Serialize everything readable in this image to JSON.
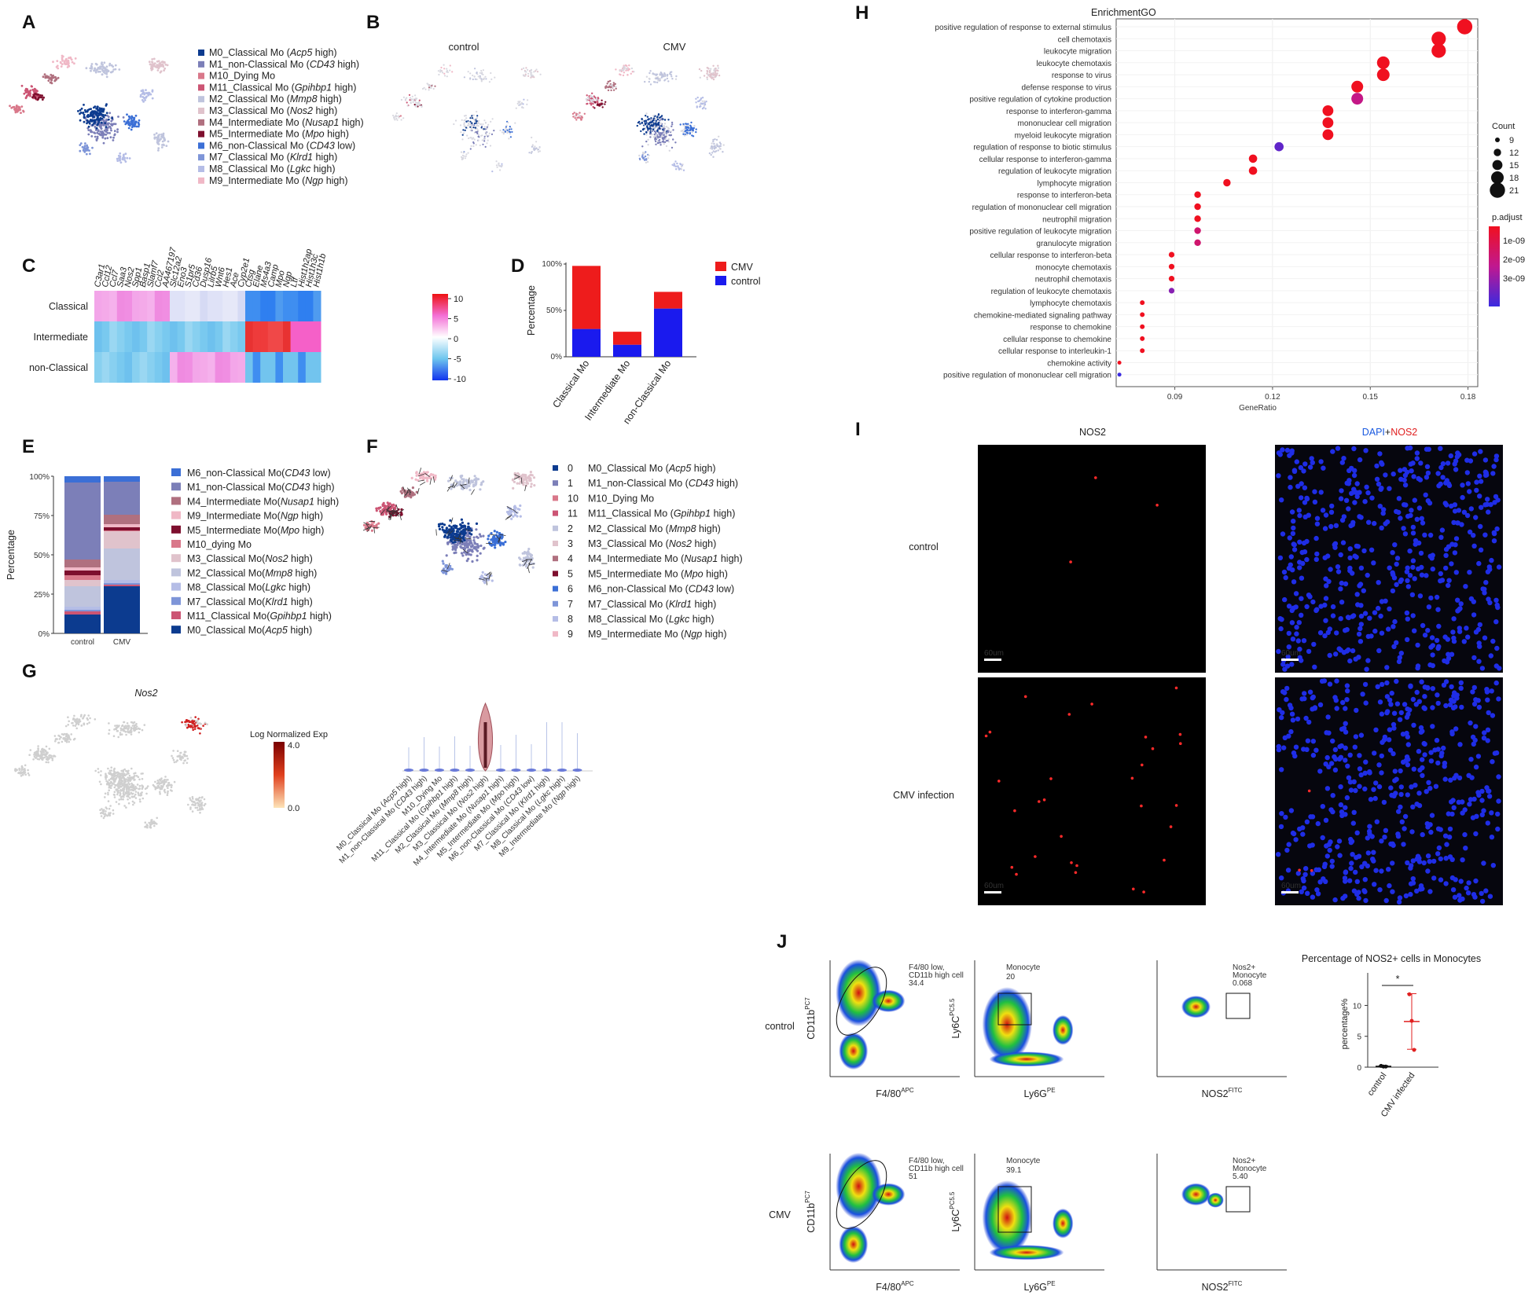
{
  "panels": {
    "A": "A",
    "B": "B",
    "C": "C",
    "D": "D",
    "E": "E",
    "F": "F",
    "G": "G",
    "H": "H",
    "I": "I",
    "J": "J"
  },
  "colors": {
    "M0": "#0c3b8f",
    "M1": "#7c7fb8",
    "M10": "#d9788a",
    "M11": "#cc5574",
    "M2": "#bfc4dd",
    "M3": "#e0c3cc",
    "M4": "#b0707f",
    "M5": "#7e0f2e",
    "M6": "#3b6fd6",
    "M7": "#7e95d8",
    "M8": "#b5bde6",
    "M9": "#f0b8c6",
    "cmv": "#ee1c1c",
    "control": "#1a1aee"
  },
  "panelA": {
    "legend": [
      {
        "key": "M0",
        "pre": "M0_Classical Mo (",
        "it": "Acp5",
        "post": " high)"
      },
      {
        "key": "M1",
        "pre": "M1_non-Classical Mo (",
        "it": "CD43",
        "post": " high)"
      },
      {
        "key": "M10",
        "pre": "M10_Dying Mo",
        "it": "",
        "post": ""
      },
      {
        "key": "M11",
        "pre": "M11_Classical Mo (",
        "it": "Gpihbp1",
        "post": " high)"
      },
      {
        "key": "M2",
        "pre": "M2_Classical Mo (",
        "it": "Mmp8",
        "post": " high)"
      },
      {
        "key": "M3",
        "pre": "M3_Classical Mo (",
        "it": "Nos2",
        "post": " high)"
      },
      {
        "key": "M4",
        "pre": "M4_Intermediate Mo (",
        "it": "Nusap1",
        "post": " high)"
      },
      {
        "key": "M5",
        "pre": "M5_Intermediate Mo (",
        "it": "Mpo",
        "post": " high)"
      },
      {
        "key": "M6",
        "pre": "M6_non-Classical Mo (",
        "it": "CD43",
        "post": " low)"
      },
      {
        "key": "M7",
        "pre": "M7_Classical Mo (",
        "it": "Klrd1",
        "post": " high)"
      },
      {
        "key": "M8",
        "pre": "M8_Classical Mo (",
        "it": "Lgkc",
        "post": " high)"
      },
      {
        "key": "M9",
        "pre": "M9_Intermediate Mo (",
        "it": "Ngp",
        "post": " high)"
      }
    ]
  },
  "panelB": {
    "left_title": "control",
    "right_title": "CMV"
  },
  "panelC": {
    "genes": [
      "C3ar1",
      "Ccl12",
      "Ccl7",
      "Saa3",
      "Nos2",
      "Spp1",
      "Basp1",
      "Slamf7",
      "Ccl2",
      "AA467197",
      "Slc12a2",
      "Eno3",
      "S1pr5",
      "Cd36",
      "Dusp16",
      "Lilrb5",
      "Wnt6",
      "Hes1",
      "Ace",
      "Cyp2e1",
      "Ctsg",
      "Elane",
      "Ms4a3",
      "Camp",
      "Mpo",
      "Ngp",
      "Ltf",
      "Hist1h2ap",
      "Hist1h3c",
      "Hist1h1b"
    ],
    "rows": [
      "Classical",
      "Intermediate",
      "non-Classical"
    ],
    "colorbar_ticks": [
      "10",
      "5",
      "0",
      "-5",
      "-10"
    ]
  },
  "chart_data": [
    {
      "type": "bar",
      "panel": "D",
      "categories": [
        "Classical Mo",
        "Intermediate Mo",
        "non-Classical Mo"
      ],
      "series": [
        {
          "name": "control",
          "values": [
            30,
            13,
            52
          ]
        },
        {
          "name": "CMV",
          "values": [
            68,
            14,
            18
          ]
        }
      ],
      "ylabel": "Percentage",
      "yticks": [
        "0%",
        "50%",
        "100%"
      ],
      "ylim": [
        0,
        100
      ],
      "stacked": true,
      "legend": "top-right"
    },
    {
      "type": "bar",
      "panel": "E",
      "categories": [
        "control",
        "CMV"
      ],
      "ylabel": "Percentage",
      "yticks": [
        "0%",
        "25%",
        "50%",
        "75%",
        "100%"
      ],
      "ylim": [
        0,
        100
      ],
      "stacked": true,
      "series": [
        {
          "key": "M0",
          "pre": "M0_Classical Mo(",
          "it": "Acp5",
          "post": " high)",
          "values": [
            12,
            30
          ]
        },
        {
          "key": "M11",
          "pre": "M11_Classical Mo(",
          "it": "Gpihbp1",
          "post": " high)",
          "values": [
            2,
            1
          ]
        },
        {
          "key": "M7",
          "pre": "M7_Classical Mo(",
          "it": "Klrd1",
          "post": " high)",
          "values": [
            1,
            1
          ]
        },
        {
          "key": "M8",
          "pre": "M8_Classical Mo(",
          "it": "Lgkc",
          "post": " high)",
          "values": [
            2,
            2
          ]
        },
        {
          "key": "M2",
          "pre": "M2_Classical Mo(",
          "it": "Mmp8",
          "post": " high)",
          "values": [
            13,
            20
          ]
        },
        {
          "key": "M3",
          "pre": "M3_Classical Mo(",
          "it": "Nos2",
          "post": " high)",
          "values": [
            4,
            11
          ]
        },
        {
          "key": "M10",
          "pre": "M10_dying Mo",
          "it": "",
          "post": "",
          "values": [
            3,
            0.5
          ]
        },
        {
          "key": "M5",
          "pre": "M5_Intermediate Mo(",
          "it": "Mpo",
          "post": " high)",
          "values": [
            3,
            2
          ]
        },
        {
          "key": "M9",
          "pre": "M9_Intermediate Mo(",
          "it": "Ngp",
          "post": " high)",
          "values": [
            2,
            2
          ]
        },
        {
          "key": "M4",
          "pre": "M4_Intermediate Mo(",
          "it": "Nusap1",
          "post": " high)",
          "values": [
            5,
            6
          ]
        },
        {
          "key": "M1",
          "pre": "M1_non-Classical Mo(",
          "it": "CD43",
          "post": " high)",
          "values": [
            49,
            21
          ]
        },
        {
          "key": "M6",
          "pre": "M6_non-Classical Mo(",
          "it": "CD43",
          "post": " low)",
          "values": [
            4,
            3.5
          ]
        }
      ]
    },
    {
      "type": "scatter",
      "panel": "H",
      "title": "EnrichmentGO",
      "xlabel": "GeneRatio",
      "xticks": [
        0.09,
        0.12,
        0.15,
        0.18
      ],
      "xlim": [
        0.072,
        0.183
      ],
      "size_legend": {
        "title": "Count",
        "values": [
          9,
          12,
          15,
          18,
          21
        ]
      },
      "color_legend": {
        "title": "p.adjust",
        "labels": [
          "1e-09",
          "2e-09",
          "3e-09"
        ]
      },
      "terms": [
        {
          "term": "positive regulation of response to external stimulus",
          "x": 0.179,
          "count": 21,
          "padj": 0.0
        },
        {
          "term": "cell chemotaxis",
          "x": 0.171,
          "count": 20,
          "padj": 0.0
        },
        {
          "term": "leukocyte migration",
          "x": 0.171,
          "count": 20,
          "padj": 0.0
        },
        {
          "term": "leukocyte chemotaxis",
          "x": 0.154,
          "count": 18,
          "padj": 0.0
        },
        {
          "term": "response to virus",
          "x": 0.154,
          "count": 18,
          "padj": 0.0
        },
        {
          "term": "defense response to virus",
          "x": 0.146,
          "count": 17,
          "padj": 0.0
        },
        {
          "term": "positive regulation of cytokine production",
          "x": 0.146,
          "count": 17,
          "padj": 1.6e-09
        },
        {
          "term": "response to interferon-gamma",
          "x": 0.137,
          "count": 16,
          "padj": 0.0
        },
        {
          "term": "mononuclear cell migration",
          "x": 0.137,
          "count": 16,
          "padj": 0.0
        },
        {
          "term": "myeloid leukocyte migration",
          "x": 0.137,
          "count": 16,
          "padj": 0.0
        },
        {
          "term": "regulation of response to biotic stimulus",
          "x": 0.122,
          "count": 14,
          "padj": 3e-09
        },
        {
          "term": "cellular response to interferon-gamma",
          "x": 0.114,
          "count": 13,
          "padj": 0.0
        },
        {
          "term": "regulation of leukocyte migration",
          "x": 0.114,
          "count": 13,
          "padj": 0.0
        },
        {
          "term": "lymphocyte migration",
          "x": 0.106,
          "count": 12,
          "padj": 0.0
        },
        {
          "term": "response to interferon-beta",
          "x": 0.097,
          "count": 11,
          "padj": 0.0
        },
        {
          "term": "regulation of mononuclear cell migration",
          "x": 0.097,
          "count": 11,
          "padj": 0.0
        },
        {
          "term": "neutrophil migration",
          "x": 0.097,
          "count": 11,
          "padj": 0.0
        },
        {
          "term": "positive regulation of leukocyte migration",
          "x": 0.097,
          "count": 11,
          "padj": 1.2e-09
        },
        {
          "term": "granulocyte migration",
          "x": 0.097,
          "count": 11,
          "padj": 1.2e-09
        },
        {
          "term": "cellular response to interferon-beta",
          "x": 0.089,
          "count": 10,
          "padj": 0.0
        },
        {
          "term": "monocyte chemotaxis",
          "x": 0.089,
          "count": 10,
          "padj": 0.0
        },
        {
          "term": "neutrophil chemotaxis",
          "x": 0.089,
          "count": 10,
          "padj": 0.0
        },
        {
          "term": "regulation of leukocyte chemotaxis",
          "x": 0.089,
          "count": 10,
          "padj": 2.5e-09
        },
        {
          "term": "lymphocyte chemotaxis",
          "x": 0.08,
          "count": 9,
          "padj": 0.0
        },
        {
          "term": "chemokine-mediated signaling pathway",
          "x": 0.08,
          "count": 9,
          "padj": 0.0
        },
        {
          "term": "response to chemokine",
          "x": 0.08,
          "count": 9,
          "padj": 0.0
        },
        {
          "term": "cellular response to chemokine",
          "x": 0.08,
          "count": 9,
          "padj": 0.0
        },
        {
          "term": "cellular response to interleukin-1",
          "x": 0.08,
          "count": 9,
          "padj": 0.0
        },
        {
          "term": "chemokine activity",
          "x": 0.073,
          "count": 8,
          "padj": 0.0
        },
        {
          "term": "positive regulation of mononuclear cell migration",
          "x": 0.073,
          "count": 8,
          "padj": 3.5e-09
        }
      ]
    },
    {
      "type": "scatter",
      "panel": "J",
      "title": "Percentage of NOS2+ cells in Monocytes",
      "ylabel": "percentage%",
      "yticks": [
        "0",
        "5",
        "10"
      ],
      "ylim": [
        0,
        14
      ],
      "categories": [
        "control",
        "CMV infected"
      ],
      "significance": "*",
      "groups": [
        {
          "name": "control",
          "points": [
            0.2,
            0.1,
            0.1
          ],
          "mean": 0.15,
          "sd": 0.1
        },
        {
          "name": "CMV infected",
          "points": [
            11.8,
            7.5,
            2.8
          ],
          "mean": 7.4,
          "sd": 4.5
        }
      ]
    }
  ],
  "panelF": {
    "legend": [
      {
        "num": "0",
        "key": "M0",
        "pre": "M0_Classical Mo (",
        "it": "Acp5",
        "post": " high)"
      },
      {
        "num": "1",
        "key": "M1",
        "pre": "M1_non-Classical Mo (",
        "it": "CD43",
        "post": " high)"
      },
      {
        "num": "10",
        "key": "M10",
        "pre": "M10_Dying Mo",
        "it": "",
        "post": ""
      },
      {
        "num": "11",
        "key": "M11",
        "pre": "M11_Classical Mo (",
        "it": "Gpihbp1",
        "post": " high)"
      },
      {
        "num": "2",
        "key": "M2",
        "pre": "M2_Classical Mo (",
        "it": "Mmp8",
        "post": " high)"
      },
      {
        "num": "3",
        "key": "M3",
        "pre": "M3_Classical Mo (",
        "it": "Nos2",
        "post": " high)"
      },
      {
        "num": "4",
        "key": "M4",
        "pre": "M4_Intermediate Mo (",
        "it": "Nusap1",
        "post": " high)"
      },
      {
        "num": "5",
        "key": "M5",
        "pre": "M5_Intermediate Mo (",
        "it": "Mpo",
        "post": " high)"
      },
      {
        "num": "6",
        "key": "M6",
        "pre": "M6_non-Classical Mo (",
        "it": "CD43",
        "post": " low)"
      },
      {
        "num": "7",
        "key": "M7",
        "pre": "M7_Classical Mo (",
        "it": "Klrd1",
        "post": " high)"
      },
      {
        "num": "8",
        "key": "M8",
        "pre": "M8_Classical Mo (",
        "it": "Lgkc",
        "post": " high)"
      },
      {
        "num": "9",
        "key": "M9",
        "pre": "M9_Intermediate Mo (",
        "it": "Ngp",
        "post": " high)"
      }
    ]
  },
  "panelG": {
    "gene": "Nos2",
    "colorbar_title": "Log Normalized Exp",
    "colorbar_max": "4.0",
    "colorbar_min": "0.0",
    "violin_labels": [
      {
        "pre": "M0_Classical Mo (",
        "it": "Acp5",
        "post": " high)"
      },
      {
        "pre": "M1_non-Classical Mo (",
        "it": "CD43",
        "post": " high)"
      },
      {
        "pre": "M10_Dying Mo",
        "it": "",
        "post": ""
      },
      {
        "pre": "M11_Classical Mo (",
        "it": "Gpihbp1",
        "post": " high)"
      },
      {
        "pre": "M2_Classical Mo (",
        "it": "Mmp8",
        "post": " high)"
      },
      {
        "pre": "M3_Classical Mo (",
        "it": "Nos2",
        "post": " high)"
      },
      {
        "pre": "M4_Intermediate Mo (",
        "it": "Nusap1",
        "post": " high)"
      },
      {
        "pre": "M5_Intermediate Mo (",
        "it": "Mpo",
        "post": " high)"
      },
      {
        "pre": "M6_non-Classical Mo (",
        "it": "CD43",
        "post": " low)"
      },
      {
        "pre": "M7_Classical Mo (",
        "it": "Klrd1",
        "post": " high)"
      },
      {
        "pre": "M8_Classical Mo (",
        "it": "Lgkc",
        "post": " high)"
      },
      {
        "pre": "M9_Intermediate Mo (",
        "it": "Ngp",
        "post": " high)"
      }
    ]
  },
  "panelI": {
    "col1": "NOS2",
    "col2_dapi": "DAPI",
    "col2_plus": "+",
    "col2_nos2": "NOS2",
    "row1": "control",
    "row2": "CMV infection",
    "scalebar": "60um"
  },
  "panelJ": {
    "row1": "control",
    "row2": "CMV",
    "xlabels": [
      {
        "base": "F4/80",
        "sup": "APC"
      },
      {
        "base": "Ly6G",
        "sup": "PE"
      },
      {
        "base": "NOS2",
        "sup": "FITC"
      }
    ],
    "ylabels": [
      {
        "base": "CD11b",
        "sup": "PC7"
      },
      {
        "base": "Ly6C",
        "sup": "PC5.5"
      }
    ],
    "control_gates": [
      {
        "l1": "F4/80 low,",
        "l2": "CD11b high cell",
        "v": "34.4"
      },
      {
        "l1": "Monocyte",
        "l2": "",
        "v": "20"
      },
      {
        "l1": "Nos2+",
        "l2": "Monocyte",
        "v": "0.068"
      }
    ],
    "cmv_gates": [
      {
        "l1": "F4/80 low,",
        "l2": "CD11b high cell",
        "v": "51"
      },
      {
        "l1": "Monocyte",
        "l2": "",
        "v": "39.1"
      },
      {
        "l1": "Nos2+",
        "l2": "Monocyte",
        "v": "5.40"
      }
    ]
  }
}
